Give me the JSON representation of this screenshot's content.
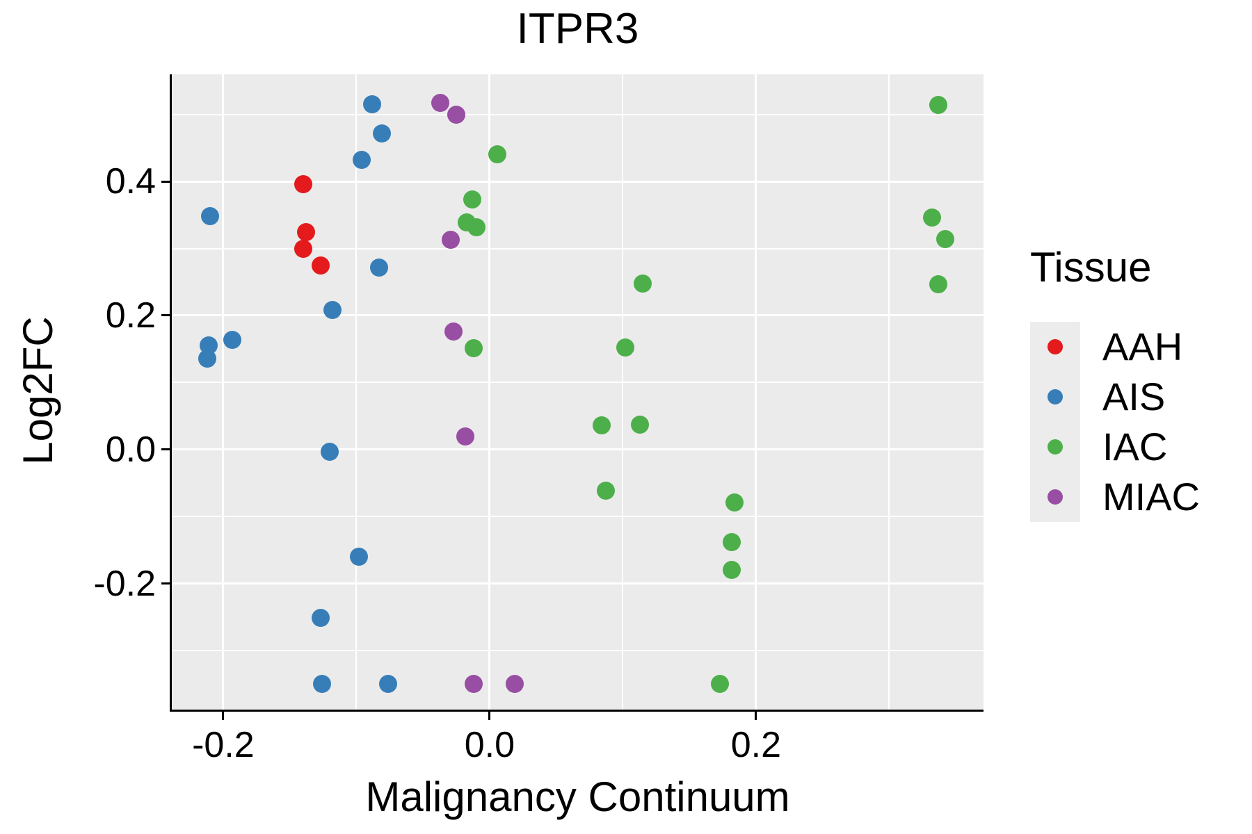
{
  "chart_data": {
    "type": "scatter",
    "title": "ITPR3",
    "xlabel": "Malignancy Continuum",
    "ylabel": "Log2FC",
    "xlim": [
      -0.2386,
      0.3708
    ],
    "ylim": [
      -0.3876,
      0.5596
    ],
    "x_ticks": [
      -0.2,
      0.0,
      0.2
    ],
    "y_ticks": [
      0.4,
      0.2,
      0.0,
      -0.2
    ],
    "x_minor_ticks": [
      -0.1,
      0.1,
      0.3
    ],
    "y_minor_ticks": [
      0.5,
      0.3,
      0.1,
      -0.1,
      -0.3
    ],
    "grid": true,
    "panel_background": "#EBEBEB",
    "grid_color": "#FFFFFF",
    "axis_color": "#000000",
    "legend_title": "Tissue",
    "legend_position": "right",
    "marker_diameter_px": 26,
    "series": [
      {
        "name": "AAH",
        "color": "#E41A1C",
        "points": [
          [
            -0.14,
            0.396
          ],
          [
            -0.138,
            0.324
          ],
          [
            -0.14,
            0.3
          ],
          [
            -0.127,
            0.275
          ]
        ]
      },
      {
        "name": "AIS",
        "color": "#377EB8",
        "points": [
          [
            -0.088,
            0.515
          ],
          [
            -0.081,
            0.472
          ],
          [
            -0.096,
            0.432
          ],
          [
            -0.21,
            0.348
          ],
          [
            -0.083,
            0.272
          ],
          [
            -0.118,
            0.208
          ],
          [
            -0.193,
            0.164
          ],
          [
            -0.211,
            0.155
          ],
          [
            -0.212,
            0.136
          ],
          [
            -0.12,
            -0.003
          ],
          [
            -0.098,
            -0.16
          ],
          [
            -0.127,
            -0.251
          ],
          [
            -0.126,
            -0.349
          ],
          [
            -0.076,
            -0.349
          ]
        ]
      },
      {
        "name": "IAC",
        "color": "#4DAF4A",
        "points": [
          [
            0.006,
            0.44
          ],
          [
            -0.013,
            0.373
          ],
          [
            -0.017,
            0.339
          ],
          [
            -0.01,
            0.332
          ],
          [
            -0.012,
            0.151
          ],
          [
            0.115,
            0.248
          ],
          [
            0.102,
            0.152
          ],
          [
            0.084,
            0.036
          ],
          [
            0.113,
            0.037
          ],
          [
            0.087,
            -0.061
          ],
          [
            0.184,
            -0.079
          ],
          [
            0.182,
            -0.138
          ],
          [
            0.182,
            -0.179
          ],
          [
            0.173,
            -0.349
          ],
          [
            0.337,
            0.514
          ],
          [
            0.332,
            0.346
          ],
          [
            0.342,
            0.314
          ],
          [
            0.337,
            0.247
          ]
        ]
      },
      {
        "name": "MIAC",
        "color": "#984EA3",
        "points": [
          [
            -0.037,
            0.517
          ],
          [
            -0.025,
            0.5
          ],
          [
            -0.029,
            0.313
          ],
          [
            -0.027,
            0.176
          ],
          [
            -0.018,
            0.02
          ],
          [
            -0.012,
            -0.349
          ],
          [
            0.019,
            -0.349
          ]
        ]
      }
    ]
  }
}
